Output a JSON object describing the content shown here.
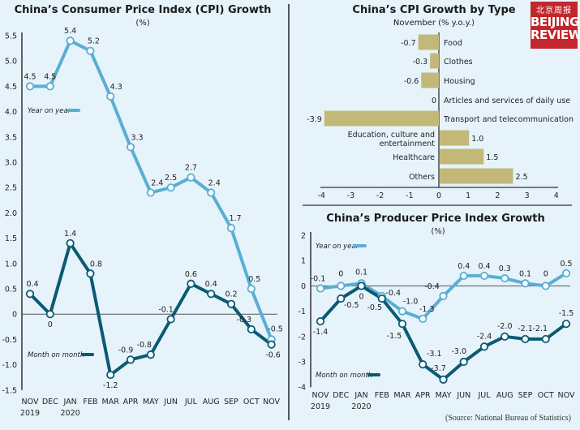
{
  "logo": {
    "cn": "北京周报",
    "en1": "BEIJING",
    "en2": "REVIEW",
    "color": "#c3262c"
  },
  "source": "(Source: National Bureau of Statistics)",
  "colors": {
    "yoy": "#5aaed4",
    "mom": "#0b5a73",
    "bar": "#c2b878",
    "bg": "#e6f3fb"
  },
  "chart_data": [
    {
      "type": "line",
      "title": "China’s Consumer Price Index (CPI) Growth",
      "subtitle": "(%)",
      "xlabel": "",
      "ylabel": "%",
      "categories": [
        "NOV\n2019",
        "DEC",
        "JAN\n2020",
        "FEB",
        "MAR",
        "APR",
        "MAY",
        "JUN",
        "JUL",
        "AUG",
        "SEP",
        "OCT",
        "NOV"
      ],
      "ylim": [
        -1.5,
        5.5
      ],
      "yticks": [
        "5.5",
        "5.0",
        "4.5",
        "4.0",
        "3.5",
        "3.0",
        "2.5",
        "2.0",
        "1.5",
        "1.0",
        "0.5",
        "0",
        "-0.5",
        "-1.0",
        "-1.5"
      ],
      "series": [
        {
          "name": "Year on year",
          "values": [
            4.5,
            4.5,
            5.4,
            5.2,
            4.3,
            3.3,
            2.4,
            2.5,
            2.7,
            2.4,
            1.7,
            0.5,
            -0.5
          ]
        },
        {
          "name": "Month on month",
          "values": [
            0.4,
            0,
            1.4,
            0.8,
            -1.2,
            -0.9,
            -0.8,
            -0.1,
            0.6,
            0.4,
            0.2,
            -0.3,
            -0.6
          ]
        }
      ],
      "legend": "left"
    },
    {
      "type": "bar",
      "orientation": "horizontal",
      "title": "China’s CPI Growth by Type",
      "subtitle": "November (% y.o.y.)",
      "categories": [
        "Food",
        "Clothes",
        "Housing",
        "Articles and services of daily use",
        "Transport and telecommunication",
        "Education, culture and entertainment",
        "Healthcare",
        "Others"
      ],
      "values": [
        -0.7,
        -0.3,
        -0.6,
        0,
        -3.9,
        1.0,
        1.5,
        2.5
      ],
      "value_labels": [
        "-0.7",
        "-0.3",
        "-0.6",
        "0",
        "-3.9",
        "1.0",
        "1.5",
        "2.5"
      ],
      "xlim": [
        -4,
        4
      ],
      "xticks": [
        "-4",
        "-3",
        "-2",
        "-1",
        "0",
        "1",
        "2",
        "3",
        "4"
      ]
    },
    {
      "type": "line",
      "title": "China’s Producer Price Index Growth",
      "subtitle": "(%)",
      "categories": [
        "NOV\n2019",
        "DEC",
        "JAN\n2020",
        "FEB",
        "MAR",
        "APR",
        "MAY",
        "JUN",
        "JUL",
        "AUG",
        "SEP",
        "OCT",
        "NOV"
      ],
      "ylim": [
        -4,
        2
      ],
      "yticks": [
        "2",
        "1",
        "0",
        "-1",
        "-2",
        "-3",
        "-4"
      ],
      "series": [
        {
          "name": "Year on year",
          "values": [
            -0.1,
            0,
            0.1,
            -0.4,
            -1.0,
            -1.3,
            -0.4,
            0.4,
            0.4,
            0.3,
            0.1,
            0,
            0.5
          ]
        },
        {
          "name": "Month on month",
          "values": [
            -1.4,
            -0.5,
            0,
            -0.5,
            -1.5,
            -3.1,
            -3.7,
            -3.0,
            -2.4,
            -2.0,
            -2.1,
            -2.1,
            -1.5
          ]
        }
      ],
      "legend": "left"
    }
  ]
}
